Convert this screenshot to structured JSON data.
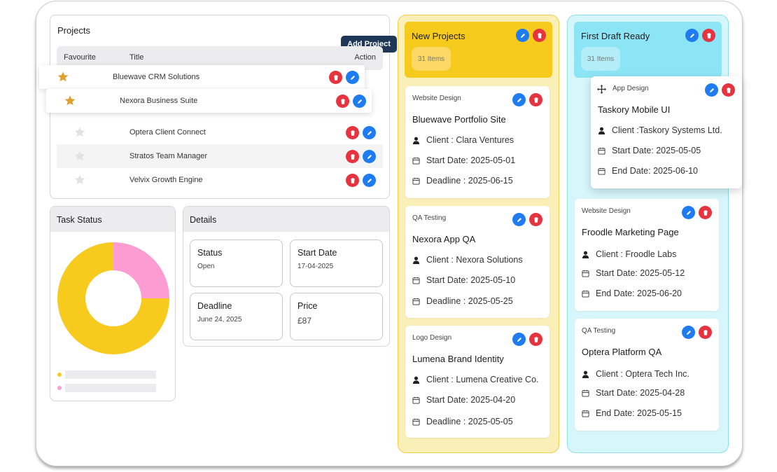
{
  "projects": {
    "title": "Projects",
    "add_label": "Add Project",
    "headers": {
      "favourite": "Favourite",
      "title": "Title",
      "action": "Action"
    },
    "rows": [
      {
        "title": "Bluewave CRM Solutions",
        "favourite": true
      },
      {
        "title": "Nexora Business Suite",
        "favourite": true
      },
      {
        "title": "Optera Client Connect",
        "favourite": false
      },
      {
        "title": "Stratos Team Manager",
        "favourite": false
      },
      {
        "title": "Velvix Growth Engine",
        "favourite": false
      }
    ]
  },
  "task_status": {
    "title": "Task Status",
    "chart_data": {
      "type": "pie",
      "values": [
        75,
        25
      ],
      "colors": [
        "#f7ca1e",
        "#fd9bd3"
      ]
    }
  },
  "details": {
    "title": "Details",
    "status_label": "Status",
    "status_value": "Open",
    "start_label": "Start Date",
    "start_value": "17-04-2025",
    "deadline_label": "Deadline",
    "deadline_value": "June 24, 2025",
    "price_label": "Price",
    "price_value": "£87"
  },
  "columns": [
    {
      "title": "New Projects",
      "count": "31 Items",
      "color": "#f7ca1e",
      "cards": [
        {
          "category": "Website Design",
          "title": "Bluewave Portfolio Site",
          "client": "Client : Clara Ventures",
          "start": "Start Date: 2025-05-01",
          "end": "Deadline : 2025-06-15"
        },
        {
          "category": "QA Testing",
          "title": "Nexora App QA",
          "client": "Client : Nexora Solutions",
          "start": "Start Date: 2025-05-10",
          "end": "Deadline : 2025-05-25"
        },
        {
          "category": "Logo Design",
          "title": "Lumena Brand Identity",
          "client": "Client : Lumena Creative Co.",
          "start": "Start Date: 2025-04-20",
          "end": "Deadline : 2025-05-05"
        }
      ]
    },
    {
      "title": "First Draft Ready",
      "count": "31 Items",
      "color": "#8ce5f4",
      "cards": [
        {
          "category": "App Design",
          "title": "Taskory Mobile UI",
          "client": "Client :Taskory Systems Ltd.",
          "start": "Start Date: 2025-05-05",
          "end": "End Date: 2025-06-10"
        },
        {
          "category": "Website Design",
          "title": "Froodle Marketing Page",
          "client": "Client : Froodle Labs",
          "start": "Start Date: 2025-05-12",
          "end": "End Date: 2025-06-20"
        },
        {
          "category": "QA Testing",
          "title": "Optera Platform QA",
          "client": "Client : Optera Tech Inc.",
          "start": "Start Date: 2025-04-28",
          "end": "End Date: 2025-05-15"
        }
      ]
    }
  ]
}
